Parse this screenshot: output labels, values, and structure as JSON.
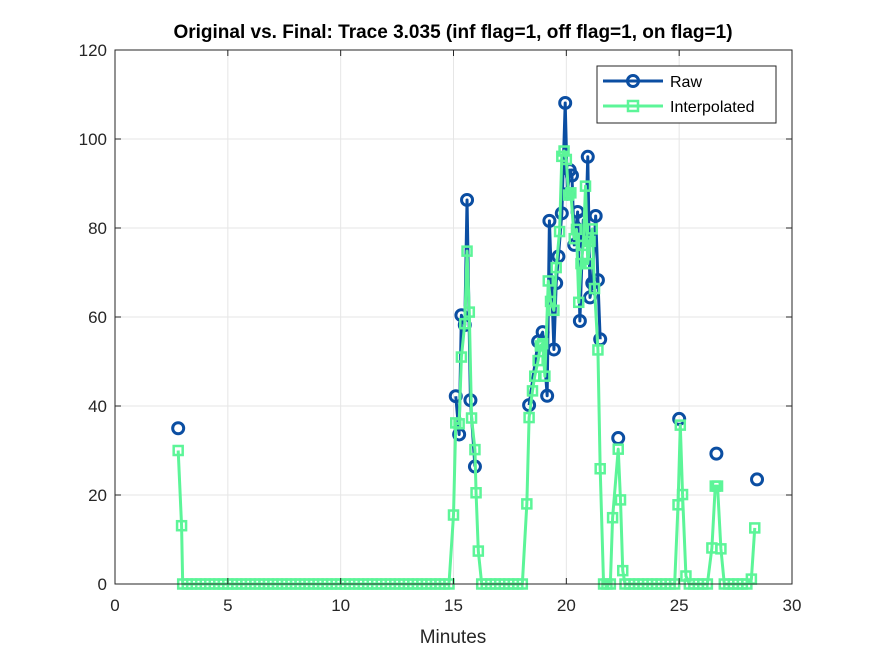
{
  "chart_data": {
    "type": "line",
    "title": "Original vs. Final: Trace 3.035 (inf flag=1, off flag=1, on flag=1)",
    "xlabel": "Minutes",
    "ylabel": "",
    "xlim": [
      0,
      30
    ],
    "ylim": [
      0,
      120
    ],
    "xticks": [
      0,
      5,
      10,
      15,
      20,
      25,
      30
    ],
    "yticks": [
      0,
      20,
      40,
      60,
      80,
      100,
      120
    ],
    "grid": true,
    "legend_position": "top-right",
    "series": [
      {
        "name": "Raw",
        "color": "#0b4ea2",
        "marker": "circle",
        "segments": [
          [
            [
              2.8,
              35.0
            ]
          ],
          [
            [
              15.1,
              42.2
            ],
            [
              15.25,
              33.6
            ],
            [
              15.35,
              60.4
            ],
            [
              15.5,
              58.2
            ],
            [
              15.6,
              86.3
            ],
            [
              15.75,
              41.3
            ],
            [
              15.95,
              26.4
            ]
          ],
          [
            [
              18.35,
              40.2
            ],
            [
              18.75,
              54.5
            ],
            [
              18.95,
              56.6
            ],
            [
              19.15,
              42.3
            ],
            [
              19.25,
              81.6
            ],
            [
              19.45,
              52.7
            ],
            [
              19.55,
              67.6
            ],
            [
              19.65,
              73.6
            ],
            [
              19.8,
              83.3
            ],
            [
              19.95,
              108.1
            ],
            [
              20.05,
              87.7
            ],
            [
              20.15,
              93.0
            ],
            [
              20.25,
              91.8
            ],
            [
              20.35,
              76.2
            ],
            [
              20.5,
              83.6
            ],
            [
              20.6,
              59.1
            ],
            [
              20.75,
              81.8
            ],
            [
              20.85,
              78.1
            ],
            [
              20.95,
              96.0
            ],
            [
              21.05,
              64.4
            ],
            [
              21.15,
              67.6
            ],
            [
              21.3,
              82.7
            ],
            [
              21.4,
              68.3
            ],
            [
              21.5,
              55.0
            ]
          ],
          [
            [
              22.3,
              32.8
            ]
          ],
          [
            [
              25.0,
              37.1
            ]
          ],
          [
            [
              26.65,
              29.3
            ]
          ],
          [
            [
              28.45,
              23.5
            ]
          ]
        ]
      },
      {
        "name": "Interpolated",
        "color": "#5cf598",
        "marker": "square",
        "points": [
          [
            2.8,
            30.0
          ],
          [
            2.95,
            13.1
          ],
          [
            3.0,
            0
          ],
          [
            3.2,
            0
          ],
          [
            3.4,
            0
          ],
          [
            3.6,
            0
          ],
          [
            3.8,
            0
          ],
          [
            4.0,
            0
          ],
          [
            4.2,
            0
          ],
          [
            4.4,
            0
          ],
          [
            4.6,
            0
          ],
          [
            4.8,
            0
          ],
          [
            5.0,
            0
          ],
          [
            5.2,
            0
          ],
          [
            5.4,
            0
          ],
          [
            5.6,
            0
          ],
          [
            5.8,
            0
          ],
          [
            6.0,
            0
          ],
          [
            6.2,
            0
          ],
          [
            6.4,
            0
          ],
          [
            6.6,
            0
          ],
          [
            6.8,
            0
          ],
          [
            7.0,
            0
          ],
          [
            7.2,
            0
          ],
          [
            7.4,
            0
          ],
          [
            7.6,
            0
          ],
          [
            7.8,
            0
          ],
          [
            8.0,
            0
          ],
          [
            8.2,
            0
          ],
          [
            8.4,
            0
          ],
          [
            8.6,
            0
          ],
          [
            8.8,
            0
          ],
          [
            9.0,
            0
          ],
          [
            9.2,
            0
          ],
          [
            9.4,
            0
          ],
          [
            9.6,
            0
          ],
          [
            9.8,
            0
          ],
          [
            10.0,
            0
          ],
          [
            10.2,
            0
          ],
          [
            10.4,
            0
          ],
          [
            10.6,
            0
          ],
          [
            10.8,
            0
          ],
          [
            11.0,
            0
          ],
          [
            11.2,
            0
          ],
          [
            11.4,
            0
          ],
          [
            11.6,
            0
          ],
          [
            11.8,
            0
          ],
          [
            12.0,
            0
          ],
          [
            12.2,
            0
          ],
          [
            12.4,
            0
          ],
          [
            12.6,
            0
          ],
          [
            12.8,
            0
          ],
          [
            13.0,
            0
          ],
          [
            13.2,
            0
          ],
          [
            13.4,
            0
          ],
          [
            13.6,
            0
          ],
          [
            13.8,
            0
          ],
          [
            14.0,
            0
          ],
          [
            14.2,
            0
          ],
          [
            14.4,
            0
          ],
          [
            14.6,
            0
          ],
          [
            14.8,
            0
          ],
          [
            15.0,
            15.5
          ],
          [
            15.1,
            36.2
          ],
          [
            15.25,
            36.0
          ],
          [
            15.35,
            51.0
          ],
          [
            15.5,
            58.5
          ],
          [
            15.6,
            74.8
          ],
          [
            15.7,
            61.1
          ],
          [
            15.8,
            37.3
          ],
          [
            15.95,
            30.2
          ],
          [
            16.0,
            20.5
          ],
          [
            16.1,
            7.4
          ],
          [
            16.25,
            0
          ],
          [
            16.45,
            0
          ],
          [
            16.65,
            0
          ],
          [
            16.85,
            0
          ],
          [
            17.05,
            0
          ],
          [
            17.25,
            0
          ],
          [
            17.45,
            0
          ],
          [
            17.65,
            0
          ],
          [
            17.85,
            0
          ],
          [
            18.05,
            0
          ],
          [
            18.25,
            18.0
          ],
          [
            18.35,
            37.4
          ],
          [
            18.5,
            43.4
          ],
          [
            18.6,
            46.7
          ],
          [
            18.75,
            50.2
          ],
          [
            18.85,
            53.5
          ],
          [
            18.95,
            54.0
          ],
          [
            19.05,
            46.7
          ],
          [
            19.2,
            68.1
          ],
          [
            19.3,
            63.5
          ],
          [
            19.45,
            61.5
          ],
          [
            19.55,
            71.1
          ],
          [
            19.7,
            79.2
          ],
          [
            19.8,
            96.1
          ],
          [
            19.9,
            97.3
          ],
          [
            20.0,
            95.4
          ],
          [
            20.1,
            87.4
          ],
          [
            20.2,
            87.9
          ],
          [
            20.35,
            77.6
          ],
          [
            20.45,
            79.7
          ],
          [
            20.55,
            63.3
          ],
          [
            20.65,
            72.0
          ],
          [
            20.75,
            76.1
          ],
          [
            20.85,
            89.4
          ],
          [
            20.95,
            72.0
          ],
          [
            21.05,
            77.0
          ],
          [
            21.15,
            79.8
          ],
          [
            21.25,
            66.4
          ],
          [
            21.4,
            52.6
          ],
          [
            21.5,
            25.9
          ],
          [
            21.65,
            0
          ],
          [
            21.8,
            0
          ],
          [
            21.95,
            0
          ],
          [
            22.05,
            14.9
          ],
          [
            22.3,
            30.3
          ],
          [
            22.4,
            18.9
          ],
          [
            22.5,
            3.0
          ],
          [
            22.6,
            0
          ],
          [
            22.8,
            0
          ],
          [
            23.0,
            0
          ],
          [
            23.2,
            0
          ],
          [
            23.4,
            0
          ],
          [
            23.6,
            0
          ],
          [
            23.8,
            0
          ],
          [
            24.0,
            0
          ],
          [
            24.2,
            0
          ],
          [
            24.4,
            0
          ],
          [
            24.6,
            0
          ],
          [
            24.8,
            0
          ],
          [
            24.95,
            17.8
          ],
          [
            25.05,
            35.7
          ],
          [
            25.15,
            20.1
          ],
          [
            25.3,
            1.8
          ],
          [
            25.45,
            0
          ],
          [
            25.65,
            0
          ],
          [
            25.85,
            0
          ],
          [
            26.05,
            0
          ],
          [
            26.25,
            0
          ],
          [
            26.45,
            8.1
          ],
          [
            26.6,
            22.0
          ],
          [
            26.7,
            22.0
          ],
          [
            26.85,
            7.9
          ],
          [
            27.0,
            0
          ],
          [
            27.2,
            0
          ],
          [
            27.4,
            0
          ],
          [
            27.6,
            0
          ],
          [
            27.8,
            0
          ],
          [
            28.0,
            0
          ],
          [
            28.2,
            1.1
          ],
          [
            28.35,
            12.6
          ]
        ]
      }
    ]
  }
}
